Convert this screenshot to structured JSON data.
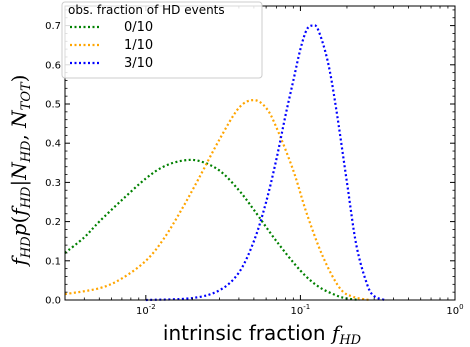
{
  "chart_data": {
    "type": "line",
    "xscale": "log",
    "xlim": [
      0.003,
      1.0
    ],
    "ylim": [
      0.0,
      0.75
    ],
    "xlabel": "intrinsic fraction f_HD",
    "ylabel": "f_HD p(f_HD | N_HD, N_TOT)",
    "x_tick_labels": [
      "10^-2",
      "10^-1",
      "10^0"
    ],
    "y_tick_labels": [
      "0.0",
      "0.1",
      "0.2",
      "0.3",
      "0.4",
      "0.5",
      "0.6",
      "0.7"
    ],
    "grid": false,
    "legend": {
      "title": "obs. fraction of HD events",
      "placement": "top-left"
    },
    "series": [
      {
        "name": "0/10",
        "color": "#008000",
        "style": "dotted",
        "x": [
          0.003,
          0.004,
          0.005,
          0.007,
          0.01,
          0.013,
          0.017,
          0.022,
          0.03,
          0.04,
          0.05,
          0.07,
          0.1,
          0.13,
          0.17,
          0.2,
          0.24
        ],
        "y": [
          0.12,
          0.16,
          0.2,
          0.255,
          0.31,
          0.34,
          0.355,
          0.355,
          0.33,
          0.28,
          0.23,
          0.15,
          0.075,
          0.035,
          0.012,
          0.004,
          0.0
        ]
      },
      {
        "name": "1/10",
        "color": "#FFA500",
        "style": "dotted",
        "x": [
          0.003,
          0.005,
          0.007,
          0.01,
          0.013,
          0.017,
          0.022,
          0.03,
          0.04,
          0.05,
          0.06,
          0.07,
          0.09,
          0.11,
          0.14,
          0.18,
          0.22,
          0.28
        ],
        "y": [
          0.015,
          0.03,
          0.055,
          0.1,
          0.155,
          0.23,
          0.31,
          0.41,
          0.49,
          0.51,
          0.49,
          0.44,
          0.33,
          0.22,
          0.11,
          0.03,
          0.008,
          0.0
        ]
      },
      {
        "name": "3/10",
        "color": "#0000FF",
        "style": "dotted",
        "x": [
          0.01,
          0.02,
          0.03,
          0.04,
          0.05,
          0.06,
          0.07,
          0.08,
          0.09,
          0.1,
          0.11,
          0.12,
          0.13,
          0.15,
          0.17,
          0.2,
          0.23,
          0.27,
          0.3,
          0.35
        ],
        "y": [
          0.0,
          0.005,
          0.025,
          0.07,
          0.15,
          0.25,
          0.36,
          0.47,
          0.56,
          0.64,
          0.69,
          0.7,
          0.69,
          0.61,
          0.49,
          0.3,
          0.14,
          0.04,
          0.01,
          0.0
        ]
      }
    ]
  }
}
